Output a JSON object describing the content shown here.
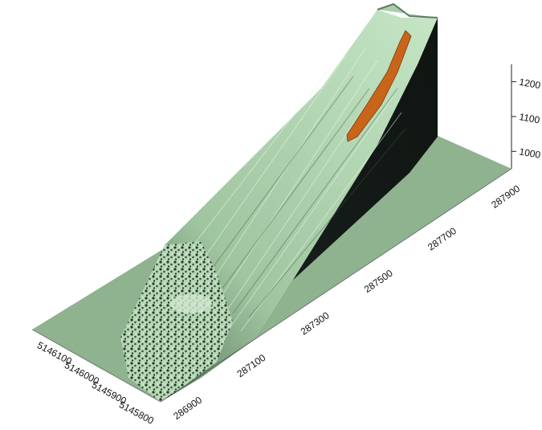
{
  "chart_data": {
    "type": "surface",
    "title": "",
    "xlabel": "",
    "ylabel": "",
    "zlabel": "",
    "x_ticks": [
      "286900",
      "287100",
      "287300",
      "287500",
      "287700",
      "287900"
    ],
    "y_ticks": [
      "5145800",
      "5145900",
      "5146000",
      "5146100"
    ],
    "z_ticks": [
      "1000",
      "1100",
      "1200"
    ],
    "xlim": [
      286900,
      287900
    ],
    "ylim": [
      5145800,
      5146100
    ],
    "zlim": [
      950,
      1250
    ],
    "colors": {
      "base_plane": "#8fb38f",
      "terrain_light": "#c9e8c9",
      "terrain_mid": "#9ec49e",
      "terrain_dark": "#2f3f33",
      "side_wall": "#141a16",
      "highlight_zone": "#c8651a"
    }
  }
}
